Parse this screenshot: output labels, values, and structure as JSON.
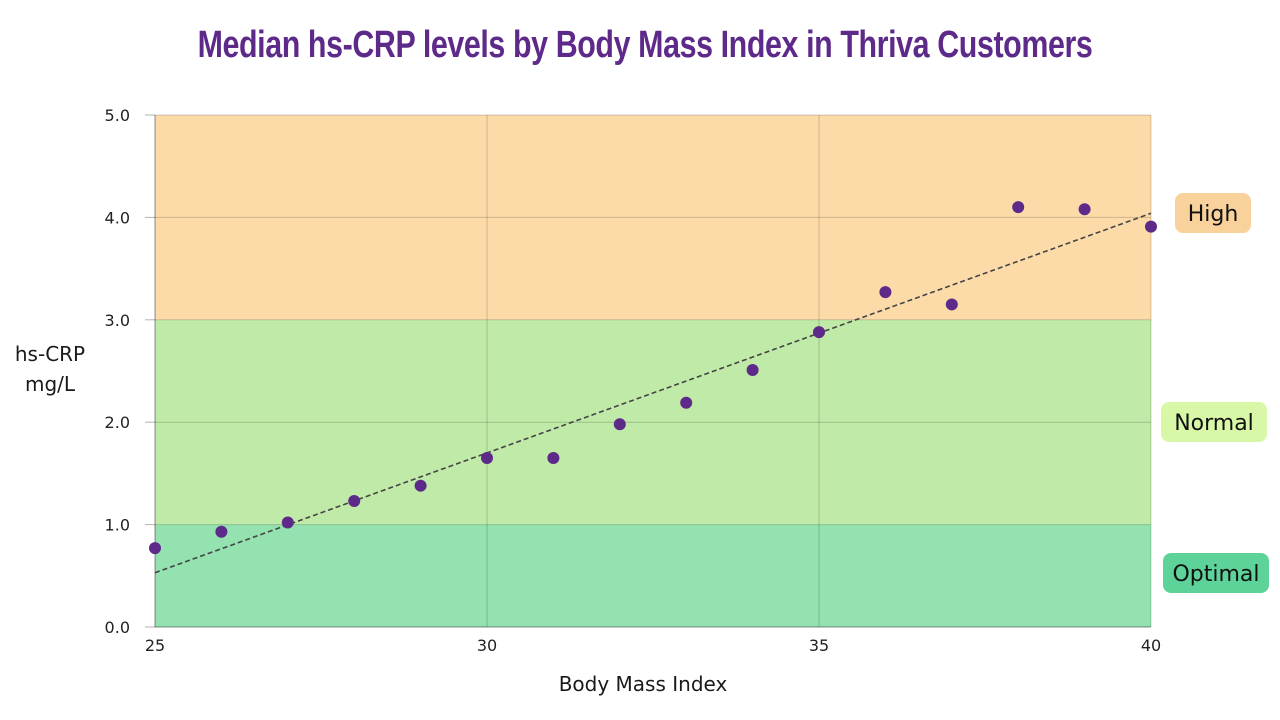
{
  "chart_data": {
    "type": "scatter",
    "title": "Median hs-CRP levels by Body Mass Index in Thriva Customers",
    "xlabel": "Body Mass Index",
    "ylabel": [
      "hs-CRP",
      "mg/L"
    ],
    "xlim": [
      25,
      40
    ],
    "ylim": [
      0,
      5
    ],
    "x_ticks": [
      25,
      30,
      35,
      40
    ],
    "x_tick_labels": [
      "25",
      "30",
      "35",
      "40"
    ],
    "y_ticks": [
      0,
      1,
      2,
      3,
      4,
      5
    ],
    "y_tick_labels": [
      "0.0",
      "1.0",
      "2.0",
      "3.0",
      "4.0",
      "5.0"
    ],
    "grid": true,
    "series": [
      {
        "name": "Median hs-CRP",
        "color": "#5e2a8a",
        "x": [
          25,
          26,
          27,
          28,
          29,
          30,
          31,
          32,
          33,
          34,
          35,
          36,
          37,
          38,
          39,
          40
        ],
        "y": [
          0.77,
          0.93,
          1.02,
          1.23,
          1.38,
          1.65,
          1.65,
          1.98,
          2.19,
          2.51,
          2.88,
          3.27,
          3.15,
          4.1,
          4.08,
          3.91
        ]
      }
    ],
    "trendline": {
      "style": "dashed",
      "color": "#444444",
      "x": [
        25,
        40
      ],
      "y": [
        0.53,
        4.04
      ]
    },
    "zones": [
      {
        "label": "Optimal",
        "from": 0,
        "to": 1,
        "fill": "#93e2b0",
        "badge_color": "#5dd39a"
      },
      {
        "label": "Normal",
        "from": 1,
        "to": 3,
        "fill": "#bfeaa8",
        "badge_color": "#d8f8a8"
      },
      {
        "label": "High",
        "from": 3,
        "to": 5,
        "fill": "#fcdba9",
        "badge_color": "#f8d29a"
      }
    ]
  }
}
